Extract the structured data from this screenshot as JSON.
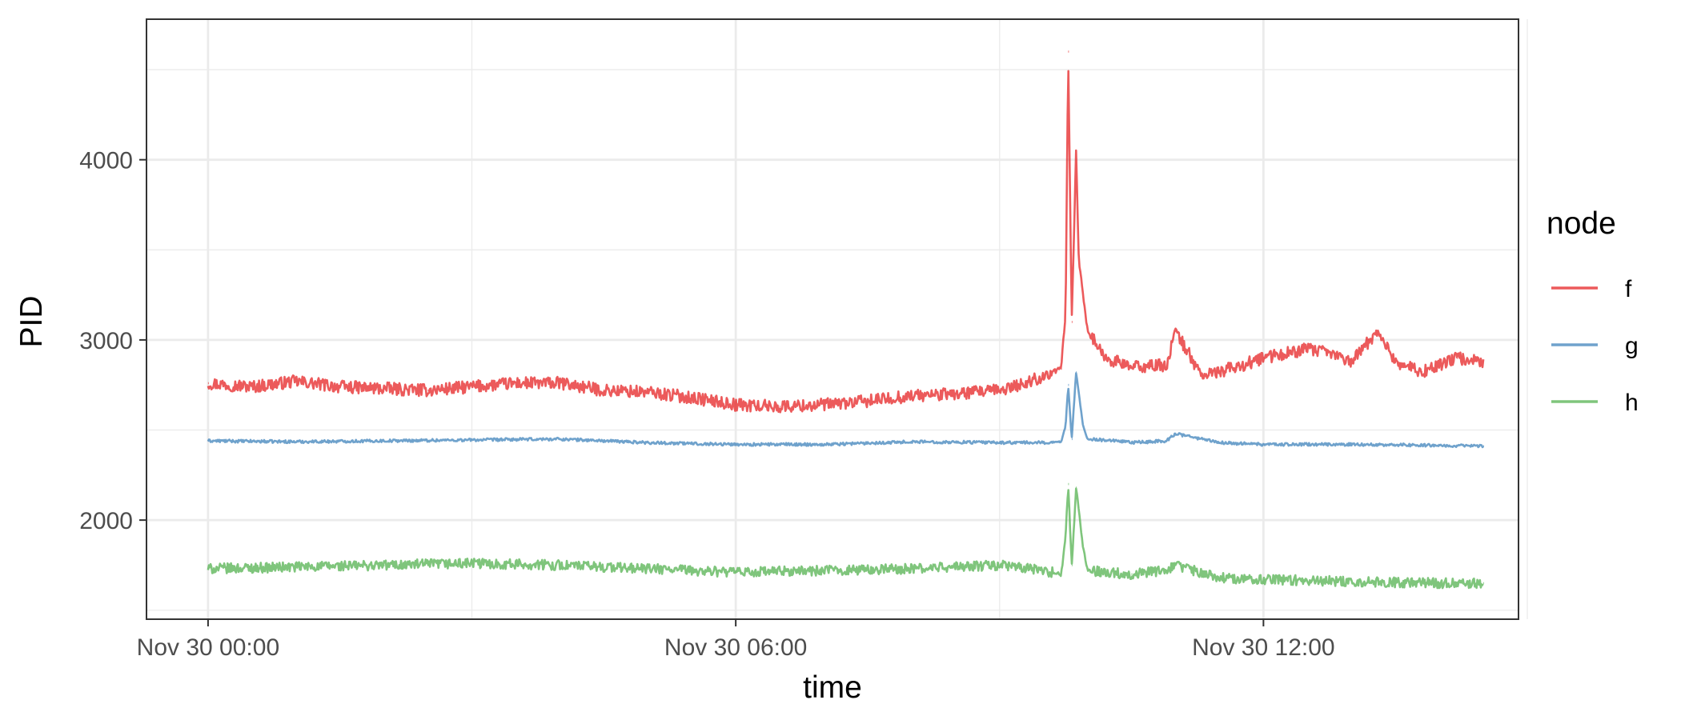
{
  "chart_data": {
    "type": "line",
    "xlabel": "time",
    "ylabel": "PID",
    "x_unit": "hours",
    "xlim": [
      -0.7,
      14.9
    ],
    "ylim": [
      1450,
      4780
    ],
    "x_ticks": [
      {
        "value": 0,
        "label": "Nov 30 00:00"
      },
      {
        "value": 6,
        "label": "Nov 30 06:00"
      },
      {
        "value": 12,
        "label": "Nov 30 12:00"
      }
    ],
    "x_minor_ticks": [
      3,
      9,
      15
    ],
    "y_ticks": [
      {
        "value": 2000,
        "label": "2000"
      },
      {
        "value": 3000,
        "label": "3000"
      },
      {
        "value": 4000,
        "label": "4000"
      }
    ],
    "y_minor_ticks": [
      1500,
      2500,
      3500,
      4500
    ],
    "grid": true,
    "legend": {
      "title": "node",
      "position": "right"
    },
    "series": [
      {
        "name": "f",
        "color": "#e41a1c",
        "noise": 35,
        "x": [
          0,
          0.5,
          1,
          1.5,
          2,
          2.5,
          3,
          3.5,
          4,
          4.5,
          5,
          5.5,
          6,
          6.5,
          7,
          7.5,
          8,
          8.5,
          9,
          9.3,
          9.5,
          9.7,
          9.75,
          9.78,
          9.82,
          9.87,
          9.9,
          10.0,
          10.2,
          10.5,
          10.9,
          11.0,
          11.3,
          11.7,
          12.0,
          12.5,
          12.8,
          13.0,
          13.3,
          13.5,
          13.8,
          14.2,
          14.5
        ],
        "y": [
          2760,
          2740,
          2770,
          2740,
          2730,
          2720,
          2740,
          2760,
          2760,
          2720,
          2710,
          2680,
          2640,
          2630,
          2640,
          2660,
          2690,
          2700,
          2720,
          2760,
          2800,
          2840,
          3150,
          4600,
          3100,
          4050,
          3450,
          3050,
          2900,
          2850,
          2860,
          3050,
          2800,
          2850,
          2900,
          2950,
          2920,
          2880,
          3050,
          2880,
          2820,
          2900,
          2880
        ]
      },
      {
        "name": "g",
        "color": "#377eb8",
        "noise": 8,
        "x": [
          0,
          1,
          2,
          3,
          4,
          5,
          6,
          7,
          8,
          9,
          9.5,
          9.7,
          9.75,
          9.78,
          9.82,
          9.87,
          9.95,
          10.0,
          10.3,
          10.5,
          10.9,
          11.0,
          11.5,
          12.0,
          13.0,
          14.0,
          14.5
        ],
        "y": [
          2440,
          2435,
          2440,
          2445,
          2450,
          2430,
          2420,
          2420,
          2435,
          2430,
          2430,
          2435,
          2520,
          2750,
          2450,
          2820,
          2520,
          2450,
          2440,
          2430,
          2440,
          2480,
          2430,
          2420,
          2420,
          2415,
          2410
        ]
      },
      {
        "name": "h",
        "color": "#4daf4a",
        "noise": 28,
        "x": [
          0,
          1,
          2,
          3,
          4,
          5,
          6,
          7,
          8,
          9,
          9.5,
          9.7,
          9.75,
          9.78,
          9.82,
          9.87,
          9.95,
          10.0,
          10.5,
          10.9,
          11.0,
          11.5,
          12.0,
          13.0,
          14.0,
          14.5
        ],
        "y": [
          1730,
          1740,
          1750,
          1760,
          1750,
          1730,
          1710,
          1720,
          1730,
          1750,
          1720,
          1700,
          1900,
          2200,
          1750,
          2180,
          1850,
          1720,
          1700,
          1720,
          1750,
          1680,
          1670,
          1660,
          1650,
          1650
        ]
      }
    ]
  }
}
